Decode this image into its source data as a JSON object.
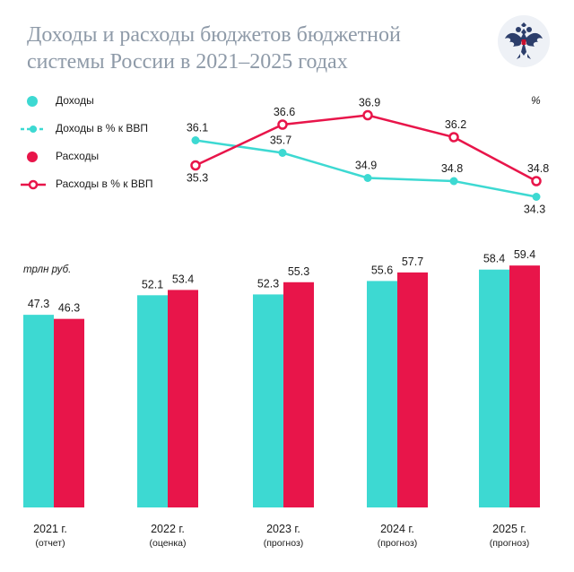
{
  "title": "Доходы и расходы бюджетов бюджетной системы России в 2021–2025 годах",
  "colors": {
    "revenue": "#3dd9d2",
    "expenses": "#e8154a",
    "title": "#8e9aa8",
    "text": "#1a1a1a"
  },
  "legend": [
    {
      "label": "Доходы",
      "marker": "circle",
      "color": "#3dd9d2"
    },
    {
      "label": "Доходы в % к ВВП",
      "marker": "dashed-line-dot",
      "color": "#3dd9d2"
    },
    {
      "label": "Расходы",
      "marker": "circle",
      "color": "#e8154a"
    },
    {
      "label": "Расходы в % к ВВП",
      "marker": "line-ring",
      "color": "#e8154a"
    }
  ],
  "chart_data": [
    {
      "type": "bar",
      "title": "Доходы и расходы бюджетов бюджетной системы России в 2021–2025 годах",
      "ylabel": "трлн руб.",
      "ylim": [
        0,
        70
      ],
      "categories": [
        "2021 г.",
        "2022 г.",
        "2023 г.",
        "2024 г.",
        "2025 г."
      ],
      "sublabels": [
        "(отчет)",
        "(оценка)",
        "(прогноз)",
        "(прогноз)",
        "(прогноз)"
      ],
      "series": [
        {
          "name": "Доходы",
          "values": [
            47.3,
            52.1,
            52.3,
            55.6,
            58.4
          ],
          "labels": [
            "47.3",
            "52.1",
            "52.3",
            "55.6",
            "58.4"
          ]
        },
        {
          "name": "Расходы",
          "values": [
            46.3,
            53.4,
            55.3,
            57.7,
            59.4
          ],
          "labels": [
            "46.3",
            "53.4",
            "55.3",
            "57.7",
            "59.4"
          ]
        }
      ]
    },
    {
      "type": "line",
      "ylabel": "%",
      "ylim": [
        34.0,
        37.2
      ],
      "categories": [
        "2021 г.",
        "2022 г.",
        "2023 г.",
        "2024 г.",
        "2025 г."
      ],
      "series": [
        {
          "name": "Доходы в % к ВВП",
          "values": [
            36.1,
            35.7,
            34.9,
            34.8,
            34.3
          ],
          "labels": [
            "36.1",
            "35.7",
            "34.9",
            "34.8",
            "34.3"
          ]
        },
        {
          "name": "Расходы в % к ВВП",
          "values": [
            35.3,
            36.6,
            36.9,
            36.2,
            34.8
          ],
          "labels": [
            "35.3",
            "36.6",
            "36.9",
            "36.2",
            "34.8"
          ]
        }
      ]
    }
  ]
}
